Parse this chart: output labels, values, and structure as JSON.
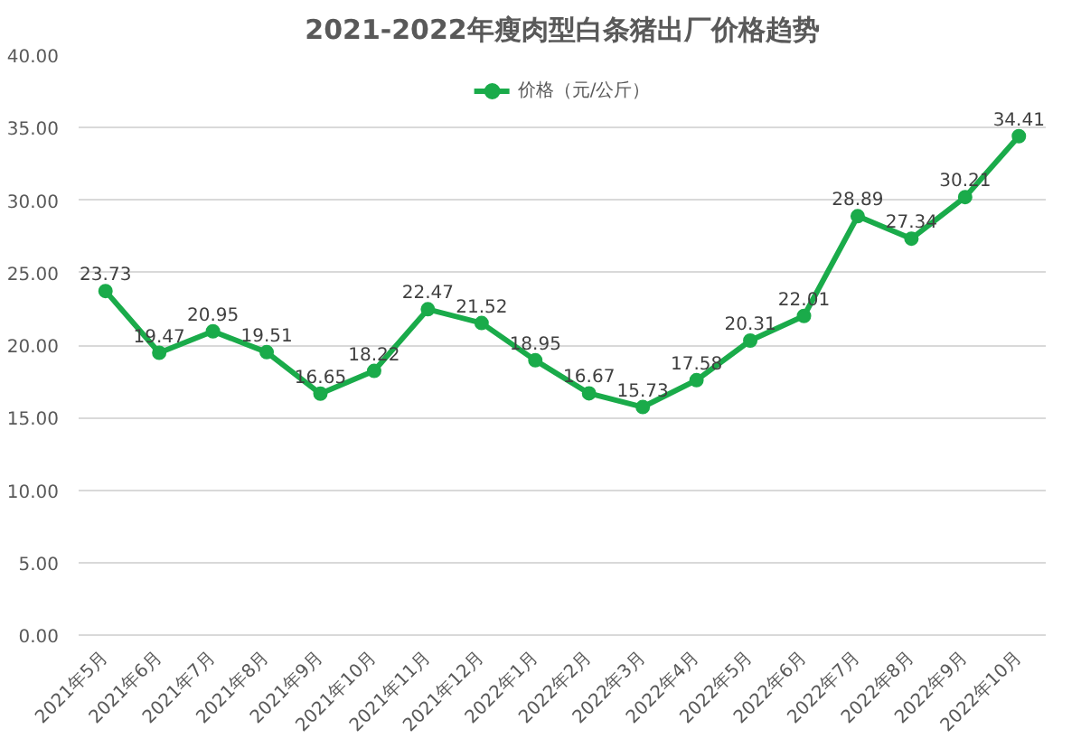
{
  "chart_data": {
    "type": "line",
    "title": "2021-2022年瘦肉型白条猪出厂价格趋势",
    "categories": [
      "2021年5月",
      "2021年6月",
      "2021年7月",
      "2021年8月",
      "2021年9月",
      "2021年10月",
      "2021年11月",
      "2021年12月",
      "2022年1月",
      "2022年2月",
      "2022年3月",
      "2022年4月",
      "2022年5月",
      "2022年6月",
      "2022年7月",
      "2022年8月",
      "2022年9月",
      "2022年10月"
    ],
    "series": [
      {
        "name": "价格（元/公斤）",
        "color": "#1aab4a",
        "values": [
          23.73,
          19.47,
          20.95,
          19.51,
          16.65,
          18.22,
          22.47,
          21.52,
          18.95,
          16.67,
          15.73,
          17.58,
          20.31,
          22.01,
          28.89,
          27.34,
          30.21,
          34.41
        ]
      }
    ],
    "ylim": [
      0,
      40
    ],
    "yticks": [
      {
        "value": 0,
        "label": "0.00"
      },
      {
        "value": 5,
        "label": "5.00"
      },
      {
        "value": 10,
        "label": "10.00"
      },
      {
        "value": 15,
        "label": "15.00"
      },
      {
        "value": 20,
        "label": "20.00"
      },
      {
        "value": 25,
        "label": "25.00"
      },
      {
        "value": 30,
        "label": "30.00"
      },
      {
        "value": 35,
        "label": "35.00"
      },
      {
        "value": 40,
        "label": "40.00"
      }
    ],
    "grid": "y",
    "legend": "top",
    "marker": "circle",
    "line_style": "solid",
    "data_labels": true
  }
}
